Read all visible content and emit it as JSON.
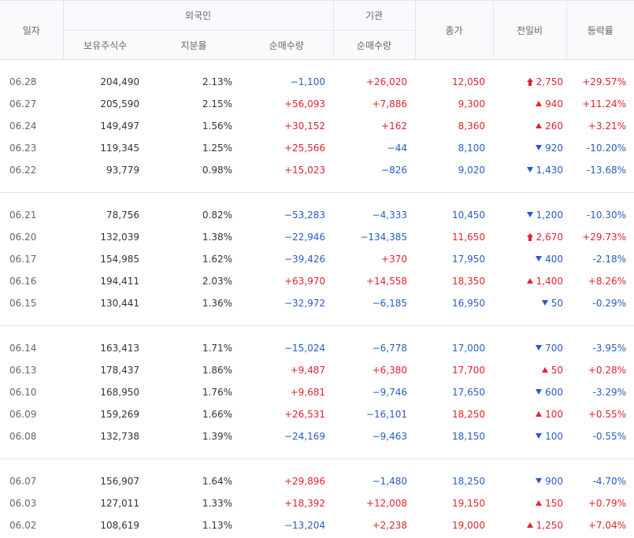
{
  "header": {
    "date": "일자",
    "foreign": "외국인",
    "institution": "기관",
    "holdings": "보유주식수",
    "share_ratio": "지분율",
    "foreign_net": "순매수량",
    "inst_net": "순매수량",
    "close": "종가",
    "change": "전일비",
    "rate": "등락률"
  },
  "colors": {
    "up": "#e0242b",
    "down": "#2a5bc4"
  },
  "groups": [
    [
      {
        "date": "06.28",
        "holdings": "204,490",
        "ratio": "2.13%",
        "fnet": "−1,100",
        "inet": "+26,020",
        "close": "12,050",
        "dir": "limit-up",
        "change": "2,750",
        "rate": "+29.57%"
      },
      {
        "date": "06.27",
        "holdings": "205,590",
        "ratio": "2.15%",
        "fnet": "+56,093",
        "inet": "+7,886",
        "close": "9,300",
        "dir": "up",
        "change": "940",
        "rate": "+11.24%"
      },
      {
        "date": "06.24",
        "holdings": "149,497",
        "ratio": "1.56%",
        "fnet": "+30,152",
        "inet": "+162",
        "close": "8,360",
        "dir": "up",
        "change": "260",
        "rate": "+3.21%"
      },
      {
        "date": "06.23",
        "holdings": "119,345",
        "ratio": "1.25%",
        "fnet": "+25,566",
        "inet": "−44",
        "close": "8,100",
        "dir": "down",
        "change": "920",
        "rate": "-10.20%"
      },
      {
        "date": "06.22",
        "holdings": "93,779",
        "ratio": "0.98%",
        "fnet": "+15,023",
        "inet": "−826",
        "close": "9,020",
        "dir": "down",
        "change": "1,430",
        "rate": "-13.68%"
      }
    ],
    [
      {
        "date": "06.21",
        "holdings": "78,756",
        "ratio": "0.82%",
        "fnet": "−53,283",
        "inet": "−4,333",
        "close": "10,450",
        "dir": "down",
        "change": "1,200",
        "rate": "-10.30%"
      },
      {
        "date": "06.20",
        "holdings": "132,039",
        "ratio": "1.38%",
        "fnet": "−22,946",
        "inet": "−134,385",
        "close": "11,650",
        "dir": "limit-up",
        "change": "2,670",
        "rate": "+29.73%"
      },
      {
        "date": "06.17",
        "holdings": "154,985",
        "ratio": "1.62%",
        "fnet": "−39,426",
        "inet": "+370",
        "close": "17,950",
        "dir": "down",
        "change": "400",
        "rate": "-2.18%"
      },
      {
        "date": "06.16",
        "holdings": "194,411",
        "ratio": "2.03%",
        "fnet": "+63,970",
        "inet": "+14,558",
        "close": "18,350",
        "dir": "up",
        "change": "1,400",
        "rate": "+8.26%"
      },
      {
        "date": "06.15",
        "holdings": "130,441",
        "ratio": "1.36%",
        "fnet": "−32,972",
        "inet": "−6,185",
        "close": "16,950",
        "dir": "down",
        "change": "50",
        "rate": "-0.29%"
      }
    ],
    [
      {
        "date": "06.14",
        "holdings": "163,413",
        "ratio": "1.71%",
        "fnet": "−15,024",
        "inet": "−6,778",
        "close": "17,000",
        "dir": "down",
        "change": "700",
        "rate": "-3.95%"
      },
      {
        "date": "06.13",
        "holdings": "178,437",
        "ratio": "1.86%",
        "fnet": "+9,487",
        "inet": "+6,380",
        "close": "17,700",
        "dir": "up",
        "change": "50",
        "rate": "+0.28%"
      },
      {
        "date": "06.10",
        "holdings": "168,950",
        "ratio": "1.76%",
        "fnet": "+9,681",
        "inet": "−9,746",
        "close": "17,650",
        "dir": "down",
        "change": "600",
        "rate": "-3.29%"
      },
      {
        "date": "06.09",
        "holdings": "159,269",
        "ratio": "1.66%",
        "fnet": "+26,531",
        "inet": "−16,101",
        "close": "18,250",
        "dir": "up",
        "change": "100",
        "rate": "+0.55%"
      },
      {
        "date": "06.08",
        "holdings": "132,738",
        "ratio": "1.39%",
        "fnet": "−24,169",
        "inet": "−9,463",
        "close": "18,150",
        "dir": "down",
        "change": "100",
        "rate": "-0.55%"
      }
    ],
    [
      {
        "date": "06.07",
        "holdings": "156,907",
        "ratio": "1.64%",
        "fnet": "+29,896",
        "inet": "−1,480",
        "close": "18,250",
        "dir": "down",
        "change": "900",
        "rate": "-4.70%"
      },
      {
        "date": "06.03",
        "holdings": "127,011",
        "ratio": "1.33%",
        "fnet": "+18,392",
        "inet": "+12,008",
        "close": "19,150",
        "dir": "up",
        "change": "150",
        "rate": "+0.79%"
      },
      {
        "date": "06.02",
        "holdings": "108,619",
        "ratio": "1.13%",
        "fnet": "−13,204",
        "inet": "+2,238",
        "close": "19,000",
        "dir": "up",
        "change": "1,250",
        "rate": "+7.04%"
      }
    ]
  ]
}
